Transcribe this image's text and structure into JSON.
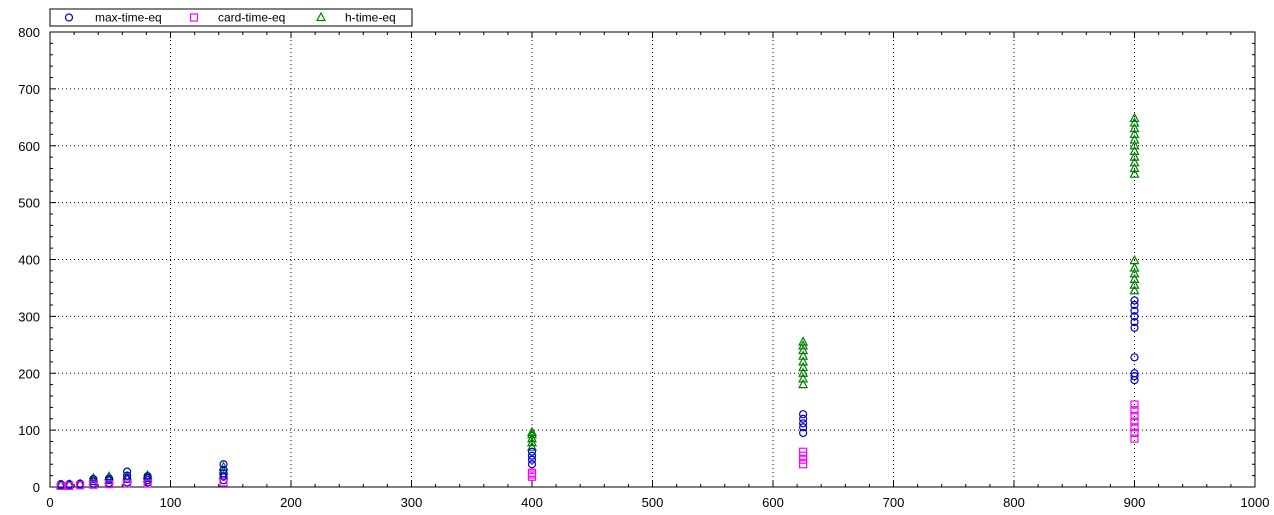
{
  "chart_data": {
    "type": "scatter",
    "title": "",
    "xlabel": "",
    "ylabel": "",
    "xlim": [
      0,
      1000
    ],
    "ylim": [
      0,
      800
    ],
    "x_ticks": [
      0,
      100,
      200,
      300,
      400,
      500,
      600,
      700,
      800,
      900,
      1000
    ],
    "y_ticks": [
      0,
      100,
      200,
      300,
      400,
      500,
      600,
      700,
      800
    ],
    "grid": true,
    "grid_style": "dotted",
    "legend_position": "top-left",
    "series": [
      {
        "name": "max-time-eq",
        "marker": "circle",
        "color": "#0000cc",
        "points": [
          [
            9,
            3
          ],
          [
            9,
            5
          ],
          [
            16,
            3
          ],
          [
            16,
            5
          ],
          [
            25,
            4
          ],
          [
            25,
            6
          ],
          [
            36,
            6
          ],
          [
            36,
            10
          ],
          [
            36,
            14
          ],
          [
            49,
            7
          ],
          [
            49,
            12
          ],
          [
            49,
            15
          ],
          [
            64,
            8
          ],
          [
            64,
            14
          ],
          [
            64,
            20
          ],
          [
            64,
            27
          ],
          [
            81,
            8
          ],
          [
            81,
            12
          ],
          [
            81,
            16
          ],
          [
            81,
            19
          ],
          [
            144,
            12
          ],
          [
            144,
            18
          ],
          [
            144,
            24
          ],
          [
            144,
            30
          ],
          [
            144,
            40
          ],
          [
            400,
            40
          ],
          [
            400,
            48
          ],
          [
            400,
            55
          ],
          [
            400,
            62
          ],
          [
            625,
            95
          ],
          [
            625,
            105
          ],
          [
            625,
            112
          ],
          [
            625,
            120
          ],
          [
            625,
            128
          ],
          [
            900,
            188
          ],
          [
            900,
            195
          ],
          [
            900,
            200
          ],
          [
            900,
            228
          ],
          [
            900,
            280
          ],
          [
            900,
            290
          ],
          [
            900,
            300
          ],
          [
            900,
            310
          ],
          [
            900,
            320
          ],
          [
            900,
            328
          ]
        ]
      },
      {
        "name": "card-time-eq",
        "marker": "square",
        "color": "#ff00ff",
        "points": [
          [
            9,
            2
          ],
          [
            16,
            2
          ],
          [
            25,
            3
          ],
          [
            36,
            4
          ],
          [
            49,
            5
          ],
          [
            64,
            6
          ],
          [
            81,
            6
          ],
          [
            144,
            8
          ],
          [
            400,
            18
          ],
          [
            400,
            22
          ],
          [
            400,
            25
          ],
          [
            625,
            40
          ],
          [
            625,
            48
          ],
          [
            625,
            55
          ],
          [
            625,
            62
          ],
          [
            900,
            85
          ],
          [
            900,
            95
          ],
          [
            900,
            105
          ],
          [
            900,
            115
          ],
          [
            900,
            125
          ],
          [
            900,
            135
          ],
          [
            900,
            145
          ]
        ]
      },
      {
        "name": "h-time-eq",
        "marker": "triangle",
        "color": "#008000",
        "points": [
          [
            9,
            3
          ],
          [
            16,
            4
          ],
          [
            25,
            5
          ],
          [
            36,
            10
          ],
          [
            36,
            15
          ],
          [
            49,
            12
          ],
          [
            49,
            18
          ],
          [
            64,
            14
          ],
          [
            64,
            18
          ],
          [
            81,
            15
          ],
          [
            81,
            20
          ],
          [
            144,
            20
          ],
          [
            144,
            28
          ],
          [
            144,
            35
          ],
          [
            400,
            70
          ],
          [
            400,
            78
          ],
          [
            400,
            85
          ],
          [
            400,
            92
          ],
          [
            400,
            96
          ],
          [
            625,
            180
          ],
          [
            625,
            190
          ],
          [
            625,
            200
          ],
          [
            625,
            210
          ],
          [
            625,
            220
          ],
          [
            625,
            230
          ],
          [
            625,
            240
          ],
          [
            625,
            248
          ],
          [
            625,
            255
          ],
          [
            900,
            345
          ],
          [
            900,
            355
          ],
          [
            900,
            365
          ],
          [
            900,
            375
          ],
          [
            900,
            385
          ],
          [
            900,
            398
          ],
          [
            900,
            550
          ],
          [
            900,
            560
          ],
          [
            900,
            570
          ],
          [
            900,
            580
          ],
          [
            900,
            590
          ],
          [
            900,
            600
          ],
          [
            900,
            610
          ],
          [
            900,
            620
          ],
          [
            900,
            630
          ],
          [
            900,
            640
          ],
          [
            900,
            648
          ]
        ]
      }
    ]
  }
}
